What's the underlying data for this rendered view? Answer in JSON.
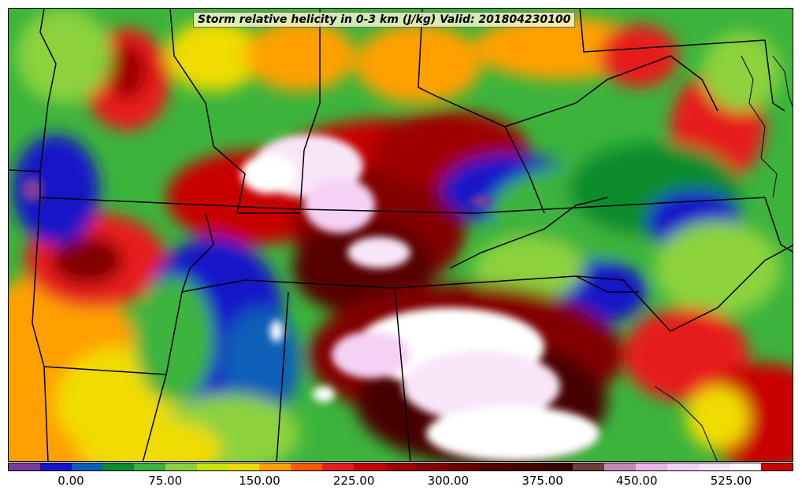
{
  "title": "Storm relative helicity in 0-3 km (J/kg) Valid: 201804230100",
  "colorbar": {
    "colors": [
      "#7a3c9c",
      "#1414c8",
      "#0a5fb8",
      "#0b8c2e",
      "#3cb43c",
      "#8cd23c",
      "#c8e600",
      "#f0dc00",
      "#ffa000",
      "#ff5a00",
      "#e61e1e",
      "#c80000",
      "#a00000",
      "#820000",
      "#6a0000",
      "#560000",
      "#460000",
      "#3a0000",
      "#6e3c3c",
      "#c08cb4",
      "#ebb4e6",
      "#f5d2f5",
      "#f8e6f8",
      "#ffffff",
      "#c80000"
    ],
    "tick_labels": [
      "0.00",
      "75.00",
      "150.00",
      "225.00",
      "300.00",
      "375.00",
      "450.00",
      "525.00"
    ]
  }
}
